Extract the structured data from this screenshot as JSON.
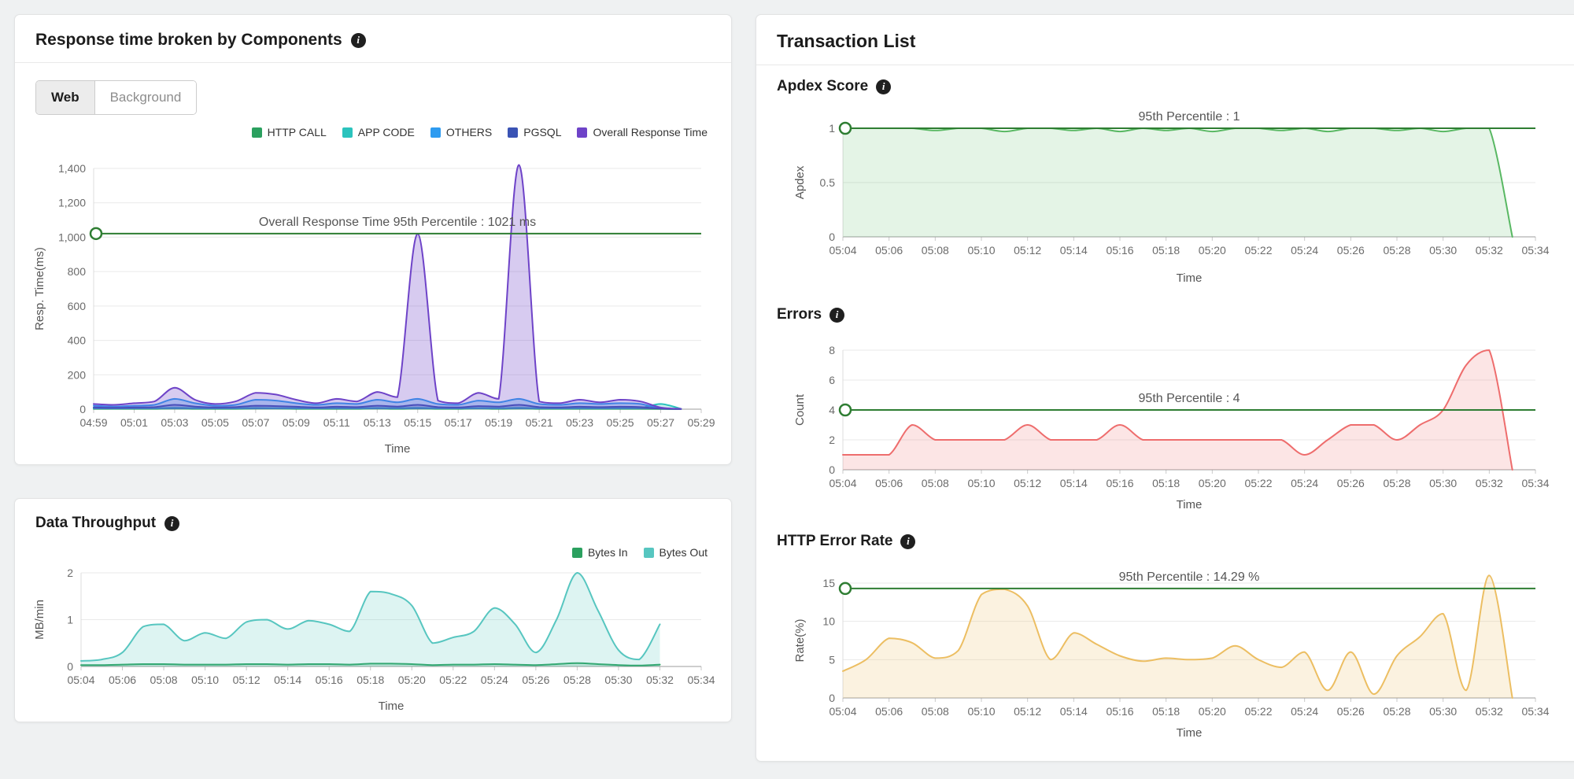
{
  "icons": {
    "info": "i"
  },
  "colors": {
    "page_bg": "#eff1f2",
    "panel_bg": "#ffffff",
    "percentile_line": "#2e7d32"
  },
  "left_column": {
    "response_panel": {
      "title": "Response time broken by Components",
      "tabs": [
        {
          "label": "Web",
          "active": true
        },
        {
          "label": "Background",
          "active": false
        }
      ]
    },
    "throughput_panel": {
      "title": "Data Throughput"
    }
  },
  "right_column": {
    "title": "Transaction List",
    "sections": [
      {
        "title": "Apdex Score"
      },
      {
        "title": "Errors"
      },
      {
        "title": "HTTP Error Rate"
      }
    ]
  },
  "chart_data": [
    {
      "id": "response-components",
      "type": "area",
      "title": "Response time broken by Components",
      "xlabel": "Time",
      "ylabel": "Resp. Time(ms)",
      "ylim": [
        0,
        1400
      ],
      "ytick_values": [
        0,
        200,
        400,
        600,
        800,
        1000,
        1200,
        1400
      ],
      "ytick_labels": [
        "0",
        "200",
        "400",
        "600",
        "800",
        "1,000",
        "1,200",
        "1,400"
      ],
      "x_ticks": [
        "04:59",
        "05:01",
        "05:03",
        "05:05",
        "05:07",
        "05:09",
        "05:11",
        "05:13",
        "05:15",
        "05:17",
        "05:19",
        "05:21",
        "05:23",
        "05:25",
        "05:27",
        "05:29"
      ],
      "minutes_per_tick": 2,
      "grid": true,
      "legend_position": "top-right",
      "percentile": {
        "value": 1021,
        "label": "Overall Response Time 95th Percentile : 1021 ms"
      },
      "series": [
        {
          "name": "HTTP CALL",
          "color": "#2ba05f",
          "fill_opacity": 0.25,
          "values": [
            2,
            2,
            2,
            2,
            3,
            2,
            2,
            2,
            3,
            3,
            2,
            2,
            2,
            2,
            3,
            2,
            3,
            2,
            2,
            3,
            2,
            3,
            2,
            2,
            2,
            2,
            2,
            2,
            1,
            0
          ]
        },
        {
          "name": "APP CODE",
          "color": "#2bc3bd",
          "fill_opacity": 0.25,
          "values": [
            5,
            4,
            5,
            5,
            8,
            6,
            5,
            5,
            7,
            6,
            5,
            5,
            6,
            5,
            7,
            6,
            8,
            5,
            5,
            6,
            5,
            8,
            5,
            5,
            6,
            5,
            6,
            8,
            30,
            2
          ]
        },
        {
          "name": "OTHERS",
          "color": "#2e9bf0",
          "fill_opacity": 0.3,
          "values": [
            20,
            15,
            20,
            25,
            60,
            35,
            20,
            25,
            55,
            50,
            35,
            25,
            35,
            30,
            55,
            40,
            60,
            30,
            25,
            50,
            40,
            60,
            30,
            25,
            35,
            30,
            35,
            30,
            5,
            1
          ]
        },
        {
          "name": "PGSQL",
          "color": "#3a53b4",
          "fill_opacity": 0.3,
          "values": [
            10,
            8,
            10,
            12,
            25,
            15,
            10,
            12,
            20,
            18,
            14,
            10,
            14,
            12,
            20,
            15,
            25,
            12,
            10,
            18,
            15,
            25,
            12,
            10,
            14,
            12,
            14,
            12,
            3,
            1
          ]
        },
        {
          "name": "Overall Response Time",
          "color": "#6e43c8",
          "fill_opacity": 0.28,
          "values": [
            30,
            25,
            35,
            45,
            125,
            55,
            30,
            45,
            95,
            85,
            55,
            35,
            60,
            45,
            100,
            70,
            1020,
            50,
            35,
            95,
            60,
            1420,
            45,
            35,
            55,
            40,
            55,
            45,
            10,
            2
          ]
        }
      ]
    },
    {
      "id": "data-throughput",
      "type": "area",
      "title": "Data Throughput",
      "xlabel": "Time",
      "ylabel": "MB/min",
      "ylim": [
        0,
        2
      ],
      "ytick_values": [
        0,
        1,
        2
      ],
      "ytick_labels": [
        "0",
        "1",
        "2"
      ],
      "x_ticks": [
        "05:04",
        "05:06",
        "05:08",
        "05:10",
        "05:12",
        "05:14",
        "05:16",
        "05:18",
        "05:20",
        "05:22",
        "05:24",
        "05:26",
        "05:28",
        "05:30",
        "05:32",
        "05:34"
      ],
      "minutes_per_tick": 2,
      "grid": true,
      "legend_position": "top-right",
      "series": [
        {
          "name": "Bytes In",
          "color": "#2ba05f",
          "fill_opacity": 0.2,
          "values": [
            0.03,
            0.03,
            0.04,
            0.05,
            0.05,
            0.04,
            0.04,
            0.04,
            0.05,
            0.05,
            0.04,
            0.05,
            0.05,
            0.04,
            0.06,
            0.06,
            0.05,
            0.03,
            0.04,
            0.04,
            0.05,
            0.04,
            0.03,
            0.05,
            0.07,
            0.05,
            0.03,
            0.02,
            0.04
          ]
        },
        {
          "name": "Bytes Out",
          "color": "#57c6c0",
          "fill_opacity": 0.2,
          "values": [
            0.12,
            0.15,
            0.3,
            0.85,
            0.9,
            0.55,
            0.72,
            0.6,
            0.95,
            1.0,
            0.8,
            0.98,
            0.9,
            0.75,
            1.6,
            1.55,
            1.3,
            0.5,
            0.62,
            0.75,
            1.25,
            0.9,
            0.3,
            1.0,
            2.0,
            1.2,
            0.35,
            0.15,
            0.9
          ]
        }
      ]
    },
    {
      "id": "apdex-score",
      "type": "area",
      "title": "Apdex Score",
      "xlabel": "Time",
      "ylabel": "Apdex",
      "ylim": [
        0,
        1
      ],
      "ytick_values": [
        0,
        0.5,
        1
      ],
      "ytick_labels": [
        "0",
        "0.5",
        "1"
      ],
      "x_ticks": [
        "05:04",
        "05:06",
        "05:08",
        "05:10",
        "05:12",
        "05:14",
        "05:16",
        "05:18",
        "05:20",
        "05:22",
        "05:24",
        "05:26",
        "05:28",
        "05:30",
        "05:32",
        "05:34"
      ],
      "minutes_per_tick": 2,
      "grid": true,
      "percentile": {
        "value": 1,
        "label": "95th Percentile : 1"
      },
      "series": [
        {
          "name": "Apdex Score",
          "color": "#59b863",
          "fill_opacity": 0.16,
          "values": [
            1,
            1,
            1,
            1,
            0.98,
            1,
            1,
            0.97,
            1,
            1,
            0.98,
            1,
            0.97,
            1,
            0.98,
            1,
            0.97,
            1,
            1,
            0.98,
            1,
            0.97,
            1,
            1,
            0.98,
            1,
            0.97,
            1,
            1,
            0
          ]
        }
      ]
    },
    {
      "id": "errors",
      "type": "area",
      "title": "Errors",
      "xlabel": "Time",
      "ylabel": "Count",
      "ylim": [
        0,
        8
      ],
      "ytick_values": [
        0,
        2,
        4,
        6,
        8
      ],
      "ytick_labels": [
        "0",
        "2",
        "4",
        "6",
        "8"
      ],
      "x_ticks": [
        "05:04",
        "05:06",
        "05:08",
        "05:10",
        "05:12",
        "05:14",
        "05:16",
        "05:18",
        "05:20",
        "05:22",
        "05:24",
        "05:26",
        "05:28",
        "05:30",
        "05:32",
        "05:34"
      ],
      "minutes_per_tick": 2,
      "grid": true,
      "percentile": {
        "value": 4,
        "label": "95th Percentile : 4"
      },
      "series": [
        {
          "name": "Errors",
          "color": "#ee6d6d",
          "fill_opacity": 0.18,
          "values": [
            1,
            1,
            1,
            3,
            2,
            2,
            2,
            2,
            3,
            2,
            2,
            2,
            3,
            2,
            2,
            2,
            2,
            2,
            2,
            2,
            1,
            2,
            3,
            3,
            2,
            3,
            4,
            7,
            8,
            0
          ]
        }
      ]
    },
    {
      "id": "http-error-rate",
      "type": "area",
      "title": "HTTP Error Rate",
      "xlabel": "Time",
      "ylabel": "Rate(%)",
      "ylim": [
        0,
        15
      ],
      "ytick_values": [
        0,
        5,
        10,
        15
      ],
      "ytick_labels": [
        "0",
        "5",
        "10",
        "15"
      ],
      "x_ticks": [
        "05:04",
        "05:06",
        "05:08",
        "05:10",
        "05:12",
        "05:14",
        "05:16",
        "05:18",
        "05:20",
        "05:22",
        "05:24",
        "05:26",
        "05:28",
        "05:30",
        "05:32",
        "05:34"
      ],
      "minutes_per_tick": 2,
      "grid": true,
      "percentile": {
        "value": 14.29,
        "label": "95th Percentile : 14.29 %"
      },
      "series": [
        {
          "name": "HTTP Error Rate",
          "color": "#ecbe62",
          "fill_opacity": 0.2,
          "values": [
            3.5,
            5,
            7.8,
            7.2,
            5.2,
            6.2,
            13.5,
            14.2,
            12,
            5,
            8.5,
            7,
            5.5,
            4.8,
            5.2,
            5,
            5.2,
            6.8,
            5,
            4,
            6,
            1,
            6,
            0.5,
            5.5,
            8,
            11,
            1,
            16,
            0
          ]
        }
      ]
    }
  ]
}
